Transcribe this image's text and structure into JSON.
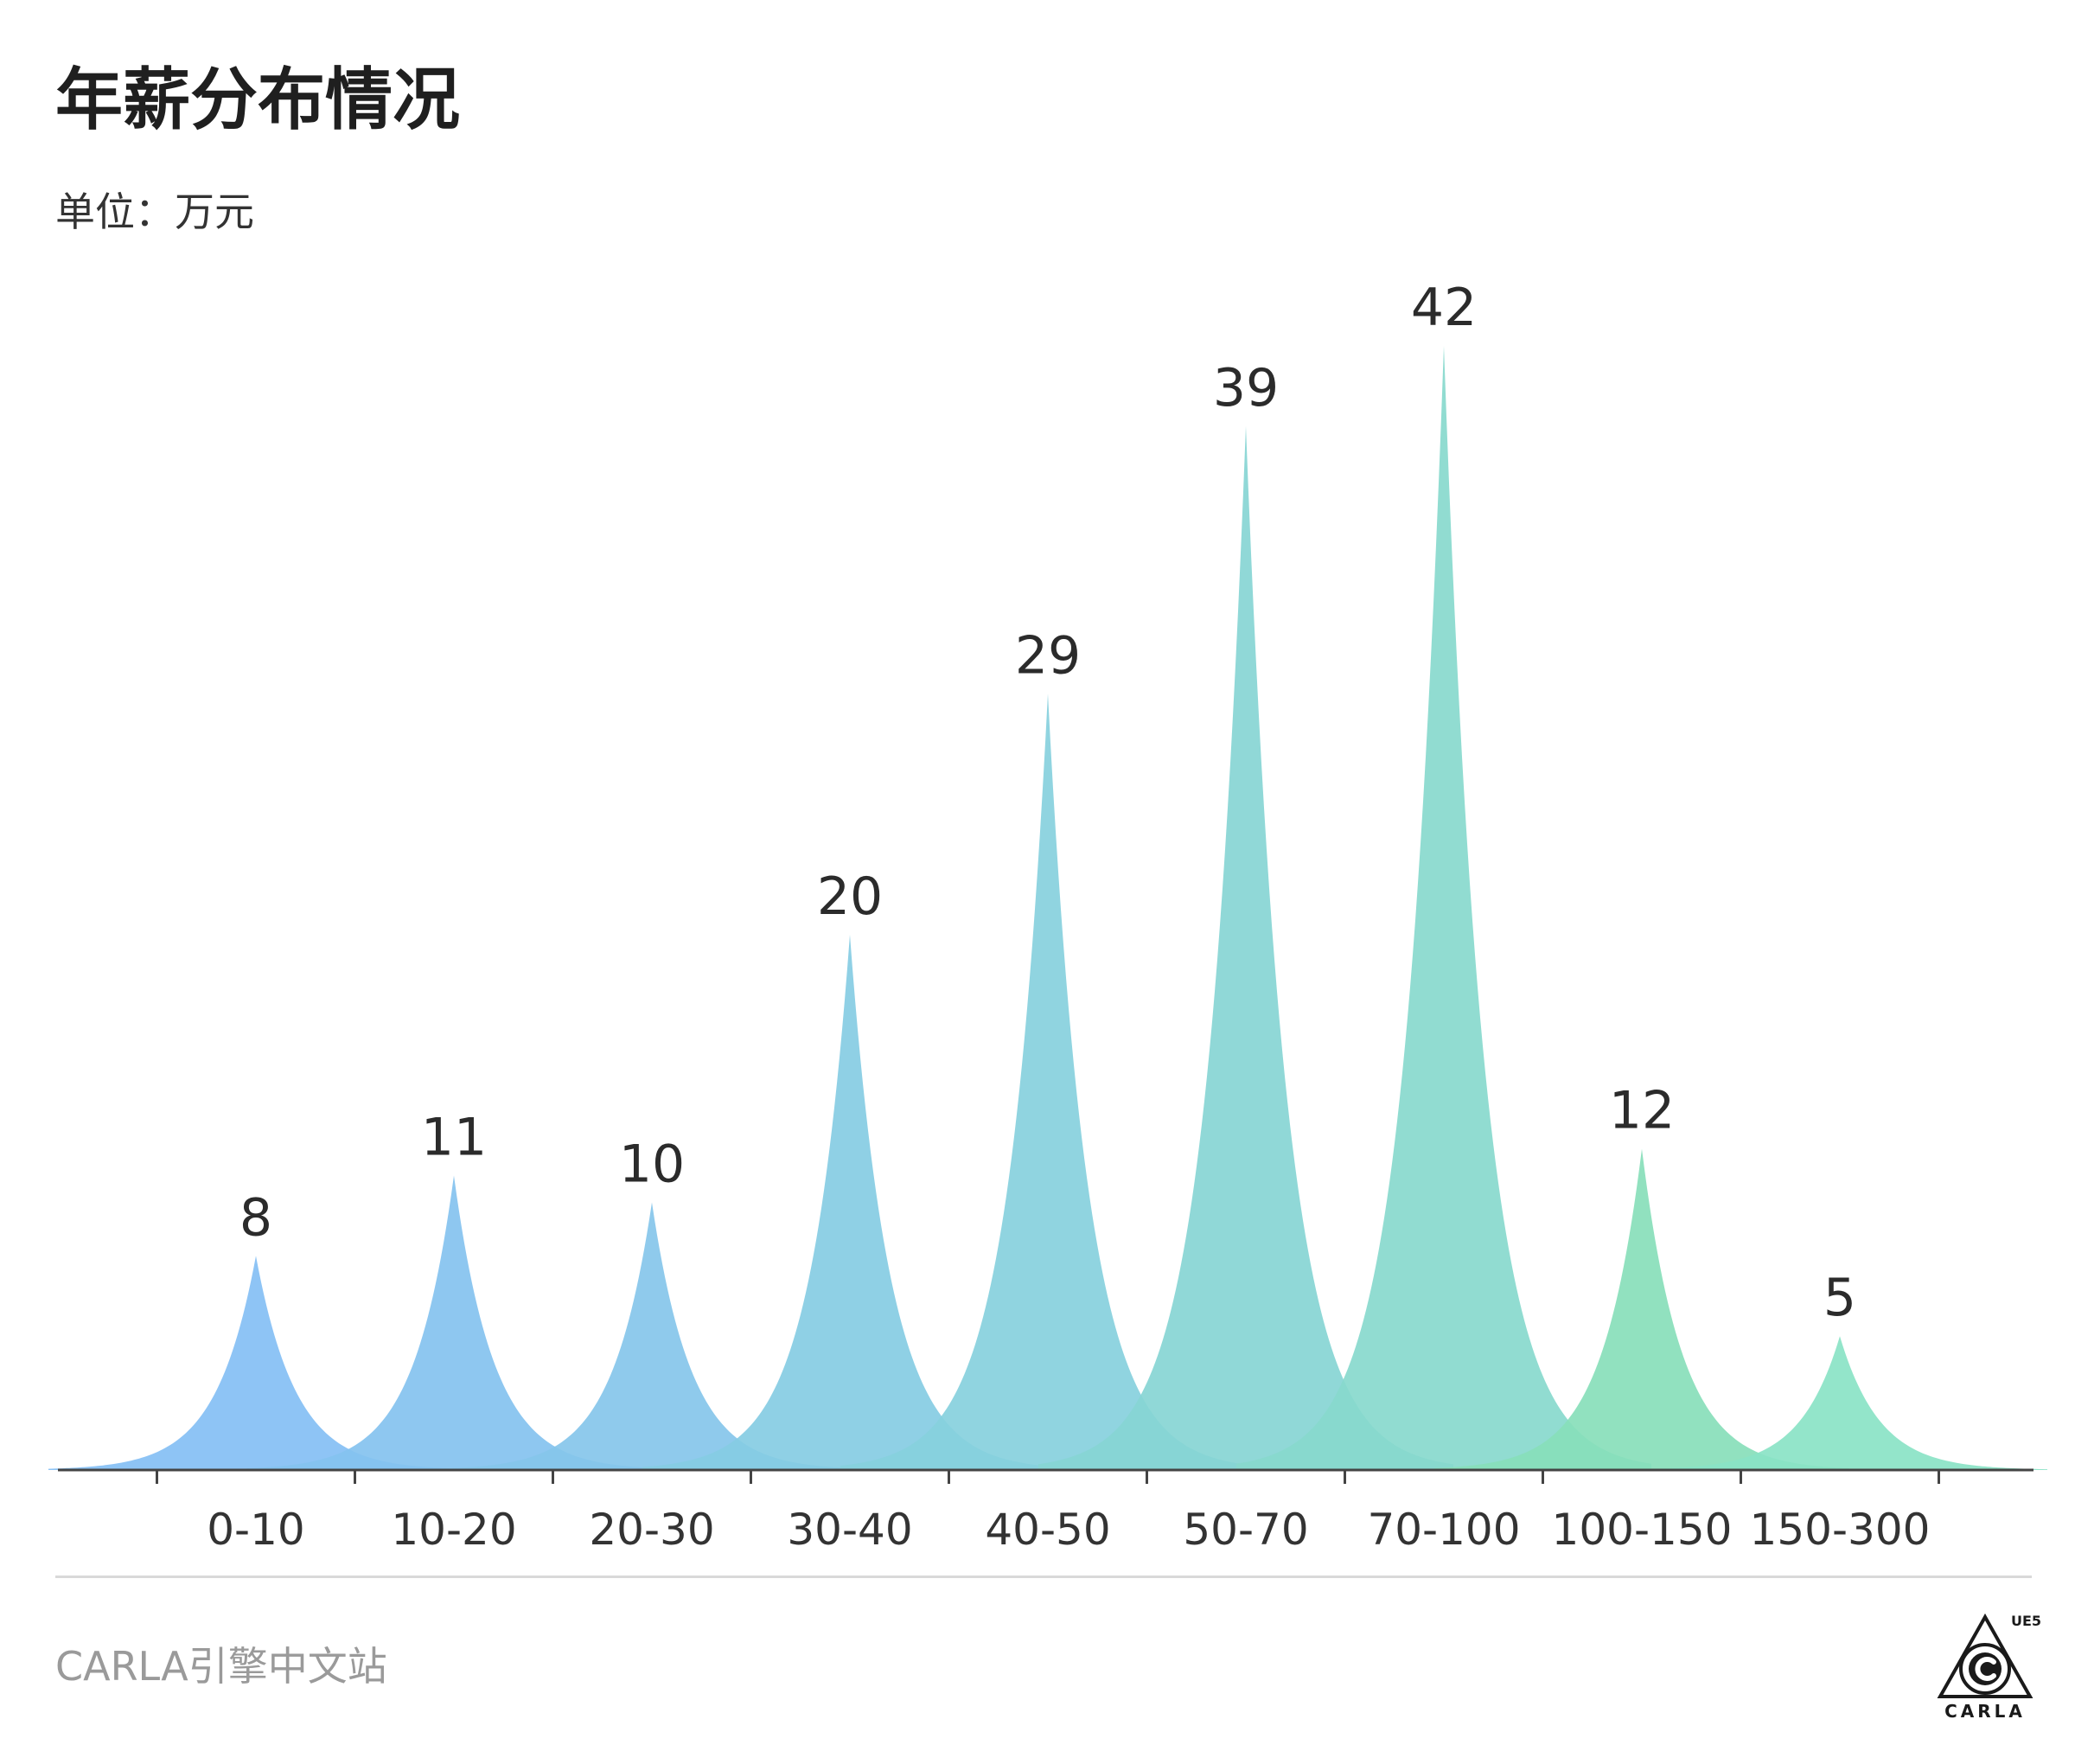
{
  "title": "年薪分布情况",
  "subtitle": "单位：万元",
  "source": "CARLA引擎中文站",
  "logo": {
    "top_text": "UE5",
    "bottom_text": "CARLA"
  },
  "chart_data": {
    "type": "area",
    "title": "年薪分布情况",
    "ylabel": "",
    "xlabel": "",
    "categories": [
      "0-10",
      "10-20",
      "20-30",
      "30-40",
      "40-50",
      "50-70",
      "70-100",
      "100-150",
      "150-300"
    ],
    "values": [
      8,
      11,
      10,
      20,
      29,
      39,
      42,
      12,
      5
    ],
    "ylim": [
      0,
      42
    ],
    "colors": [
      "#84bff4",
      "#84c2ef",
      "#85c5ea",
      "#86cce3",
      "#87d0dd",
      "#87d5d4",
      "#88d9cd",
      "#88deba",
      "#8ae3c6"
    ],
    "grid": false,
    "legend": "none"
  }
}
